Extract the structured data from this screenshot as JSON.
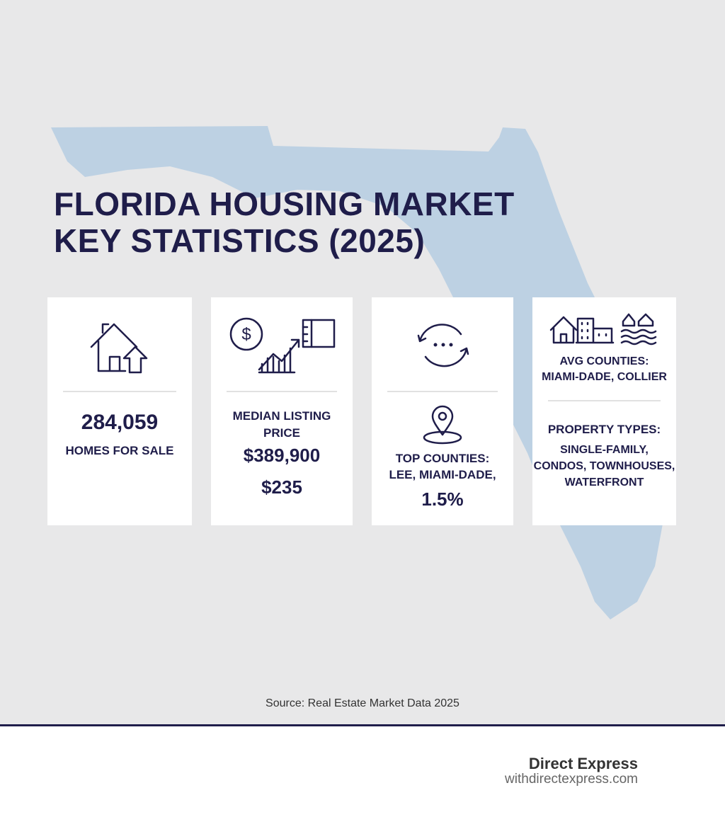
{
  "header": {
    "title_lines": [
      "FLORIDA HOUSING MARKET",
      "KEY STATISTICS (2025)"
    ]
  },
  "cards": [
    {
      "value": "284,059",
      "label": "HOMES FOR SALE"
    },
    {
      "label_lines": [
        "MEDIAN LISTING",
        "PRICE"
      ],
      "value": "$389,900",
      "secondary_value": "$235"
    },
    {
      "label_lines": [
        "TOP COUNTIES:",
        "LEE, MIAMI-DADE,"
      ],
      "value": "1.5%"
    },
    {
      "header_lines": [
        "AVG COUNTIES:",
        "MIAMI-DADE, COLLIER"
      ],
      "label": "PROPERTY TYPES:",
      "value_lines": [
        "SINGLE-FAMILY,",
        "CONDOS, TOWNHOUSES,",
        "WATERFRONT"
      ]
    }
  ],
  "source": "Source: Real Estate Market Data 2025",
  "footer": {
    "brand": "Direct Express",
    "url": "withdirectexpress.com"
  }
}
